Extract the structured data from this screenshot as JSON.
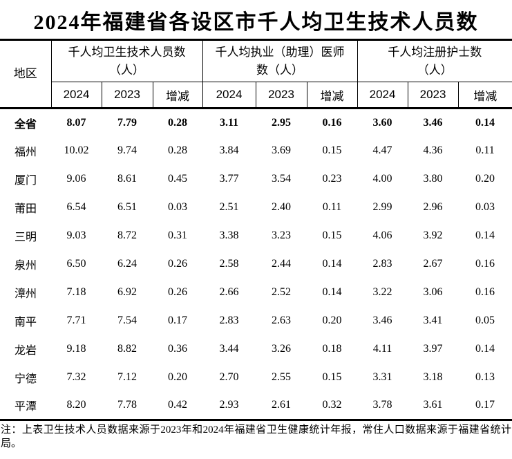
{
  "title": "2024年福建省各设区市千人均卫生技术人员数",
  "table": {
    "region_header": "地区",
    "groups": [
      {
        "label": "千人均卫生技术人员数（人）",
        "line1": "千人均卫生技术人员数",
        "line2": "（人）"
      },
      {
        "label": "千人均执业（助理）医师数（人）",
        "line1": "千人均执业（助理）医师",
        "line2": "数（人）"
      },
      {
        "label": "千人均注册护士数（人）",
        "line1": "千人均注册护士数",
        "line2": "（人）"
      }
    ],
    "sub_headers": [
      "2024",
      "2023",
      "增减"
    ],
    "rows": [
      {
        "region": "全省",
        "bold": true,
        "values": [
          "8.07",
          "7.79",
          "0.28",
          "3.11",
          "2.95",
          "0.16",
          "3.60",
          "3.46",
          "0.14"
        ]
      },
      {
        "region": "福州",
        "bold": false,
        "values": [
          "10.02",
          "9.74",
          "0.28",
          "3.84",
          "3.69",
          "0.15",
          "4.47",
          "4.36",
          "0.11"
        ]
      },
      {
        "region": "厦门",
        "bold": false,
        "values": [
          "9.06",
          "8.61",
          "0.45",
          "3.77",
          "3.54",
          "0.23",
          "4.00",
          "3.80",
          "0.20"
        ]
      },
      {
        "region": "莆田",
        "bold": false,
        "values": [
          "6.54",
          "6.51",
          "0.03",
          "2.51",
          "2.40",
          "0.11",
          "2.99",
          "2.96",
          "0.03"
        ]
      },
      {
        "region": "三明",
        "bold": false,
        "values": [
          "9.03",
          "8.72",
          "0.31",
          "3.38",
          "3.23",
          "0.15",
          "4.06",
          "3.92",
          "0.14"
        ]
      },
      {
        "region": "泉州",
        "bold": false,
        "values": [
          "6.50",
          "6.24",
          "0.26",
          "2.58",
          "2.44",
          "0.14",
          "2.83",
          "2.67",
          "0.16"
        ]
      },
      {
        "region": "漳州",
        "bold": false,
        "values": [
          "7.18",
          "6.92",
          "0.26",
          "2.66",
          "2.52",
          "0.14",
          "3.22",
          "3.06",
          "0.16"
        ]
      },
      {
        "region": "南平",
        "bold": false,
        "values": [
          "7.71",
          "7.54",
          "0.17",
          "2.83",
          "2.63",
          "0.20",
          "3.46",
          "3.41",
          "0.05"
        ]
      },
      {
        "region": "龙岩",
        "bold": false,
        "values": [
          "9.18",
          "8.82",
          "0.36",
          "3.44",
          "3.26",
          "0.18",
          "4.11",
          "3.97",
          "0.14"
        ]
      },
      {
        "region": "宁德",
        "bold": false,
        "values": [
          "7.32",
          "7.12",
          "0.20",
          "2.70",
          "2.55",
          "0.15",
          "3.31",
          "3.18",
          "0.13"
        ]
      },
      {
        "region": "平潭",
        "bold": false,
        "values": [
          "8.20",
          "7.78",
          "0.42",
          "2.93",
          "2.61",
          "0.32",
          "3.78",
          "3.61",
          "0.17"
        ]
      }
    ]
  },
  "note": "注：上表卫生技术人员数据来源于2023年和2024年福建省卫生健康统计年报，常住人口数据来源于福建省统计局。",
  "colors": {
    "text": "#000000",
    "background": "#ffffff",
    "border": "#000000"
  }
}
